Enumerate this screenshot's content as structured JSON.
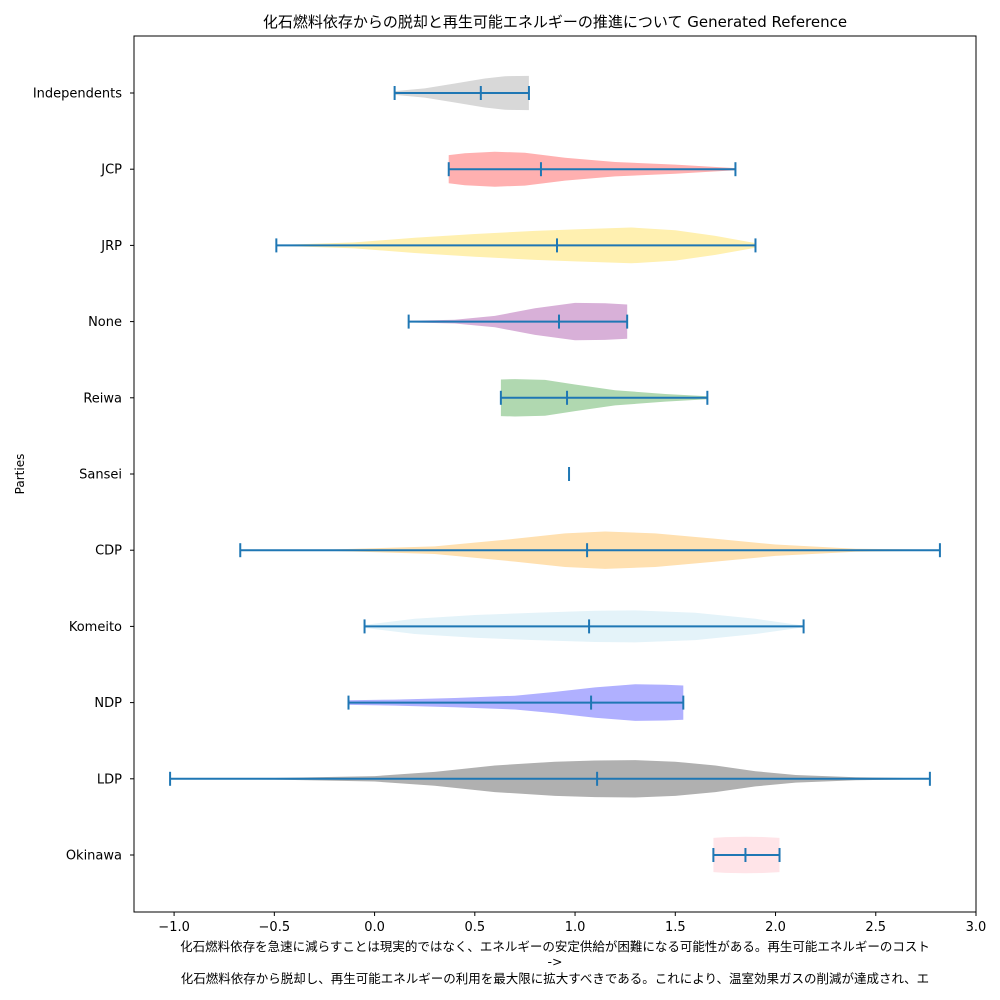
{
  "chart_data": {
    "type": "violin",
    "orientation": "horizontal",
    "title": "化石燃料依存からの脱却と再生可能エネルギーの推進について Generated Reference",
    "ylabel": "Parties",
    "xlabel_lines": [
      "化石燃料依存を急速に減らすことは現実的ではなく、エネルギーの安定供給が困難になる可能性がある。再生可能エネルギーのコスト",
      "->",
      "化石燃料依存から脱却し、再生可能エネルギーの利用を最大限に拡大すべきである。これにより、温室効果ガスの削減が達成され、エ"
    ],
    "xlim": [
      -1.2,
      3.0
    ],
    "xticks": [
      -1.0,
      -0.5,
      0.0,
      0.5,
      1.0,
      1.5,
      2.0,
      2.5,
      3.0
    ],
    "xtick_labels": [
      "−1.0",
      "−0.5",
      "0.0",
      "0.5",
      "1.0",
      "1.5",
      "2.0",
      "2.5",
      "3.0"
    ],
    "grid": false,
    "stat_color": "#1f77b4",
    "series": [
      {
        "name": "Okinawa",
        "color": "#ffe4e8",
        "min": 1.69,
        "max": 2.02,
        "median": 1.85,
        "density": [
          [
            1.69,
            0.45
          ],
          [
            1.75,
            0.47
          ],
          [
            1.85,
            0.48
          ],
          [
            1.95,
            0.47
          ],
          [
            2.02,
            0.45
          ]
        ]
      },
      {
        "name": "LDP",
        "color": "#b0b0b0",
        "min": -1.02,
        "max": 2.77,
        "median": 1.11,
        "density": [
          [
            -1.02,
            0.01
          ],
          [
            -0.5,
            0.02
          ],
          [
            0.0,
            0.07
          ],
          [
            0.3,
            0.18
          ],
          [
            0.6,
            0.35
          ],
          [
            0.9,
            0.45
          ],
          [
            1.1,
            0.48
          ],
          [
            1.3,
            0.49
          ],
          [
            1.5,
            0.45
          ],
          [
            1.7,
            0.35
          ],
          [
            1.9,
            0.2
          ],
          [
            2.1,
            0.1
          ],
          [
            2.4,
            0.04
          ],
          [
            2.77,
            0.01
          ]
        ]
      },
      {
        "name": "NDP",
        "color": "#b0b0ff",
        "min": -0.13,
        "max": 1.54,
        "median": 1.08,
        "density": [
          [
            -0.13,
            0.06
          ],
          [
            0.1,
            0.08
          ],
          [
            0.4,
            0.12
          ],
          [
            0.7,
            0.18
          ],
          [
            0.9,
            0.28
          ],
          [
            1.1,
            0.4
          ],
          [
            1.3,
            0.48
          ],
          [
            1.45,
            0.47
          ],
          [
            1.54,
            0.45
          ]
        ]
      },
      {
        "name": "Komeito",
        "color": "#e4f3f9",
        "min": -0.05,
        "max": 2.14,
        "median": 1.07,
        "density": [
          [
            -0.05,
            0.04
          ],
          [
            0.2,
            0.2
          ],
          [
            0.5,
            0.3
          ],
          [
            0.8,
            0.36
          ],
          [
            1.1,
            0.41
          ],
          [
            1.3,
            0.42
          ],
          [
            1.6,
            0.36
          ],
          [
            1.9,
            0.2
          ],
          [
            2.14,
            0.02
          ]
        ]
      },
      {
        "name": "CDP",
        "color": "#ffe0b0",
        "min": -0.67,
        "max": 2.82,
        "median": 1.06,
        "density": [
          [
            -0.67,
            0.01
          ],
          [
            -0.2,
            0.02
          ],
          [
            0.3,
            0.1
          ],
          [
            0.7,
            0.3
          ],
          [
            0.95,
            0.44
          ],
          [
            1.15,
            0.49
          ],
          [
            1.4,
            0.44
          ],
          [
            1.7,
            0.3
          ],
          [
            2.0,
            0.15
          ],
          [
            2.4,
            0.04
          ],
          [
            2.82,
            0.01
          ]
        ]
      },
      {
        "name": "Sansei",
        "color": "#1f77b4",
        "min": 0.97,
        "max": 0.97,
        "median": 0.97,
        "density": []
      },
      {
        "name": "Reiwa",
        "color": "#b0d8b0",
        "min": 0.63,
        "max": 1.66,
        "median": 0.96,
        "density": [
          [
            0.63,
            0.48
          ],
          [
            0.7,
            0.49
          ],
          [
            0.85,
            0.47
          ],
          [
            1.0,
            0.35
          ],
          [
            1.2,
            0.2
          ],
          [
            1.45,
            0.1
          ],
          [
            1.66,
            0.04
          ]
        ]
      },
      {
        "name": "None",
        "color": "#d8b0d8",
        "min": 0.17,
        "max": 1.26,
        "median": 0.92,
        "density": [
          [
            0.17,
            0.02
          ],
          [
            0.4,
            0.05
          ],
          [
            0.6,
            0.15
          ],
          [
            0.8,
            0.35
          ],
          [
            1.0,
            0.49
          ],
          [
            1.15,
            0.48
          ],
          [
            1.26,
            0.45
          ]
        ]
      },
      {
        "name": "JRP",
        "color": "#fff0b0",
        "min": -0.49,
        "max": 1.9,
        "median": 0.91,
        "density": [
          [
            -0.49,
            0.01
          ],
          [
            -0.1,
            0.08
          ],
          [
            0.2,
            0.2
          ],
          [
            0.5,
            0.3
          ],
          [
            0.8,
            0.38
          ],
          [
            1.0,
            0.42
          ],
          [
            1.28,
            0.47
          ],
          [
            1.5,
            0.4
          ],
          [
            1.7,
            0.25
          ],
          [
            1.9,
            0.06
          ]
        ]
      },
      {
        "name": "JCP",
        "color": "#ffb0b0",
        "min": 0.37,
        "max": 1.8,
        "median": 0.83,
        "density": [
          [
            0.37,
            0.37
          ],
          [
            0.45,
            0.42
          ],
          [
            0.6,
            0.46
          ],
          [
            0.75,
            0.43
          ],
          [
            0.95,
            0.3
          ],
          [
            1.2,
            0.19
          ],
          [
            1.5,
            0.12
          ],
          [
            1.8,
            0.03
          ]
        ]
      },
      {
        "name": "Independents",
        "color": "#d8d8d8",
        "min": 0.1,
        "max": 0.77,
        "median": 0.53,
        "density": [
          [
            0.1,
            0.05
          ],
          [
            0.25,
            0.12
          ],
          [
            0.4,
            0.25
          ],
          [
            0.55,
            0.38
          ],
          [
            0.65,
            0.44
          ],
          [
            0.77,
            0.45
          ]
        ]
      }
    ]
  }
}
